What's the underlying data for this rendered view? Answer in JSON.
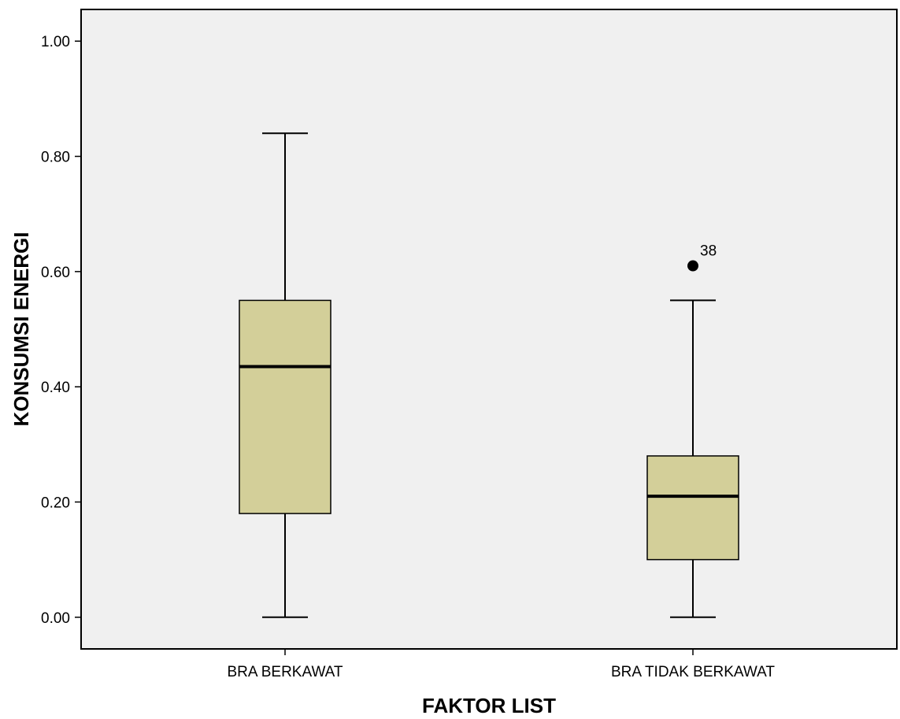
{
  "chart_data": {
    "type": "box",
    "xlabel": "FAKTOR LIST",
    "ylabel": "KONSUMSI ENERGI",
    "ylim": [
      -0.055,
      1.055
    ],
    "yticks": [
      0.0,
      0.2,
      0.4,
      0.6,
      0.8,
      1.0
    ],
    "ytick_labels": [
      "0.00",
      "0.20",
      "0.40",
      "0.60",
      "0.80",
      "1.00"
    ],
    "grid": false,
    "plot_background": "#f0f0f0",
    "box_color": "#d3cf99",
    "categories": [
      "BRA BERKAWAT",
      "BRA TIDAK BERKAWAT"
    ],
    "boxes": [
      {
        "category": "BRA BERKAWAT",
        "whisker_low": 0.0,
        "q1": 0.18,
        "median": 0.435,
        "q3": 0.55,
        "whisker_high": 0.84,
        "outliers": []
      },
      {
        "category": "BRA TIDAK BERKAWAT",
        "whisker_low": 0.0,
        "q1": 0.1,
        "median": 0.21,
        "q3": 0.28,
        "whisker_high": 0.55,
        "outliers": [
          {
            "value": 0.61,
            "label": "38"
          }
        ]
      }
    ]
  }
}
